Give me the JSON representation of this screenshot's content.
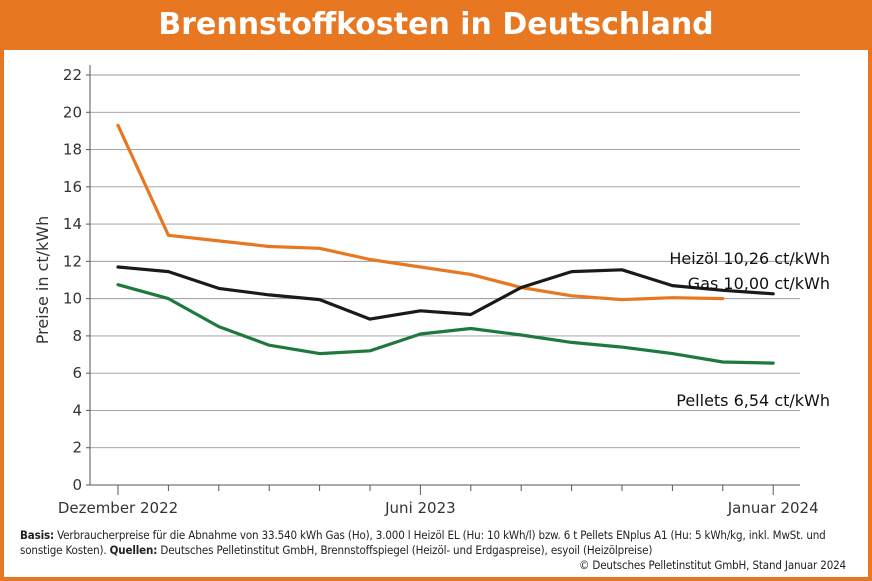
{
  "header": {
    "title": "Brennstoffkosten in Deutschland"
  },
  "chart_data": {
    "type": "line",
    "title": "Brennstoffkosten in Deutschland",
    "ylabel": "Preise in ct/kWh",
    "xlabel": "",
    "ylim": [
      0,
      22
    ],
    "y_ticks": [
      0,
      2,
      4,
      6,
      8,
      10,
      12,
      14,
      16,
      18,
      20,
      22
    ],
    "grid": true,
    "x": [
      "2022-12",
      "2023-01",
      "2023-02",
      "2023-03",
      "2023-04",
      "2023-05",
      "2023-06",
      "2023-07",
      "2023-08",
      "2023-09",
      "2023-10",
      "2023-11",
      "2023-12",
      "2024-01"
    ],
    "x_tick_labels": [
      {
        "x": "2022-12",
        "label": "Dezember 2022"
      },
      {
        "x": "2023-06",
        "label": "Juni 2023"
      },
      {
        "x": "2024-01",
        "label": "Januar 2024"
      }
    ],
    "series": [
      {
        "name": "Gas",
        "color": "#E87722",
        "values": [
          19.3,
          13.4,
          13.1,
          12.8,
          12.7,
          12.1,
          11.7,
          11.3,
          10.6,
          10.15,
          9.95,
          10.05,
          10.0,
          null
        ],
        "annotation": "Gas 10,00 ct/kWh"
      },
      {
        "name": "Heizöl",
        "color": "#1a1a1a",
        "values": [
          11.7,
          11.45,
          10.55,
          10.2,
          9.95,
          8.9,
          9.35,
          9.15,
          10.6,
          11.45,
          11.55,
          10.7,
          10.45,
          10.26
        ],
        "annotation": "Heizöl 10,26 ct/kWh"
      },
      {
        "name": "Pellets",
        "color": "#1E7A3C",
        "values": [
          10.75,
          10.0,
          8.5,
          7.5,
          7.05,
          7.2,
          8.1,
          8.4,
          8.05,
          7.65,
          7.4,
          7.05,
          6.6,
          6.54
        ],
        "annotation": "Pellets 6,54 ct/kWh"
      }
    ]
  },
  "footer": {
    "basis_label": "Basis:",
    "basis_text": "Verbraucherpreise für die Abnahme von 33.540 kWh Gas (Ho), 3.000 l Heizöl EL (Hu: 10 kWh/l) bzw. 6 t Pellets ENplus A1 (Hu: 5 kWh/kg, inkl. MwSt. und sonstige Kosten).",
    "quellen_label": "Quellen:",
    "quellen_text": "Deutsches Pelletinstitut GmbH, Brennstoffspiegel (Heizöl- und Erdgaspreise), esyoil (Heizölpreise)",
    "copyright": "© Deutsches Pelletinstitut GmbH, Stand Januar 2024"
  }
}
